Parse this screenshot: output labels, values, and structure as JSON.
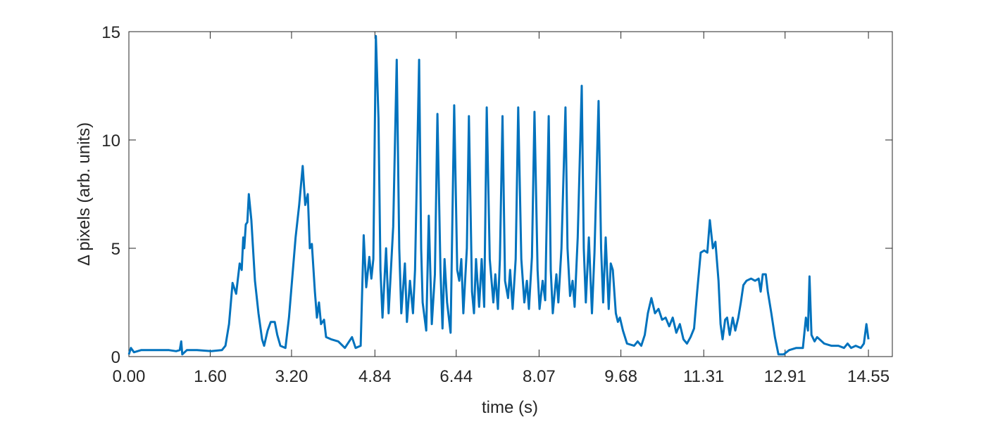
{
  "chart_data": {
    "type": "line",
    "xlabel": "time (s)",
    "ylabel": "Δ pixels (arb. units)",
    "color": "#0072BD",
    "xlim": [
      0,
      15.02
    ],
    "ylim": [
      0,
      15
    ],
    "xticks": [
      {
        "value": 0,
        "label": "0.00"
      },
      {
        "value": 1.6,
        "label": "1.60"
      },
      {
        "value": 3.2,
        "label": "3.20"
      },
      {
        "value": 4.84,
        "label": "4.84"
      },
      {
        "value": 6.44,
        "label": "6.44"
      },
      {
        "value": 8.07,
        "label": "8.07"
      },
      {
        "value": 9.68,
        "label": "9.68"
      },
      {
        "value": 11.31,
        "label": "11.31"
      },
      {
        "value": 12.91,
        "label": "12.91"
      },
      {
        "value": 14.55,
        "label": "14.55"
      }
    ],
    "yticks": [
      0,
      5,
      10,
      15
    ],
    "x": [
      0,
      0.04,
      0.1,
      0.24,
      0.51,
      0.79,
      0.93,
      1.0,
      1.03,
      1.05,
      1.14,
      1.34,
      1.62,
      1.83,
      1.9,
      1.97,
      2.04,
      2.11,
      2.18,
      2.22,
      2.25,
      2.27,
      2.3,
      2.33,
      2.36,
      2.41,
      2.48,
      2.55,
      2.62,
      2.66,
      2.73,
      2.79,
      2.87,
      2.92,
      2.98,
      3.08,
      3.15,
      3.28,
      3.35,
      3.42,
      3.47,
      3.52,
      3.56,
      3.6,
      3.66,
      3.7,
      3.74,
      3.78,
      3.84,
      3.88,
      3.98,
      4.12,
      4.25,
      4.39,
      4.46,
      4.56,
      4.62,
      4.67,
      4.73,
      4.77,
      4.81,
      4.86,
      4.91,
      4.95,
      4.99,
      5.06,
      5.11,
      5.2,
      5.27,
      5.32,
      5.36,
      5.43,
      5.47,
      5.53,
      5.59,
      5.63,
      5.71,
      5.75,
      5.78,
      5.85,
      5.9,
      5.96,
      6.02,
      6.07,
      6.13,
      6.17,
      6.21,
      6.26,
      6.33,
      6.4,
      6.46,
      6.5,
      6.54,
      6.58,
      6.65,
      6.69,
      6.75,
      6.79,
      6.83,
      6.89,
      6.94,
      6.99,
      7.04,
      7.1,
      7.17,
      7.21,
      7.26,
      7.3,
      7.35,
      7.4,
      7.46,
      7.5,
      7.55,
      7.61,
      7.66,
      7.72,
      7.78,
      7.83,
      7.87,
      7.93,
      7.98,
      8.04,
      8.08,
      8.14,
      8.19,
      8.26,
      8.3,
      8.34,
      8.41,
      8.45,
      8.51,
      8.59,
      8.63,
      8.68,
      8.73,
      8.77,
      8.83,
      8.91,
      8.95,
      8.99,
      9.05,
      9.11,
      9.16,
      9.24,
      9.29,
      9.33,
      9.38,
      9.44,
      9.48,
      9.52,
      9.58,
      9.62,
      9.66,
      9.72,
      9.8,
      9.94,
      10.01,
      10.08,
      10.15,
      10.21,
      10.28,
      10.35,
      10.42,
      10.49,
      10.56,
      10.63,
      10.7,
      10.77,
      10.84,
      10.91,
      10.98,
      11.05,
      11.12,
      11.18,
      11.25,
      11.32,
      11.38,
      11.43,
      11.49,
      11.54,
      11.6,
      11.64,
      11.68,
      11.73,
      11.77,
      11.82,
      11.88,
      11.93,
      11.99,
      12.04,
      12.09,
      12.15,
      12.24,
      12.32,
      12.39,
      12.43,
      12.47,
      12.53,
      12.57,
      12.64,
      12.71,
      12.78,
      12.88,
      12.99,
      13.13,
      13.26,
      13.32,
      13.36,
      13.39,
      13.43,
      13.49,
      13.54,
      13.68,
      13.82,
      13.96,
      14.07,
      14.14,
      14.21,
      14.3,
      14.4,
      14.46,
      14.51,
      14.55
    ],
    "values": [
      0.1,
      0.4,
      0.2,
      0.3,
      0.3,
      0.3,
      0.25,
      0.3,
      0.7,
      0.1,
      0.3,
      0.3,
      0.25,
      0.3,
      0.5,
      1.5,
      3.4,
      2.9,
      4.3,
      4.0,
      5.5,
      5.0,
      6.1,
      6.2,
      7.5,
      6.3,
      3.5,
      2.0,
      0.8,
      0.5,
      1.2,
      1.6,
      1.6,
      1.0,
      0.5,
      0.4,
      1.8,
      5.5,
      7.0,
      8.8,
      7.0,
      7.5,
      5.0,
      5.2,
      3.0,
      1.8,
      2.5,
      1.5,
      1.7,
      0.9,
      0.8,
      0.7,
      0.4,
      0.9,
      0.4,
      0.5,
      5.6,
      3.2,
      4.6,
      3.6,
      4.5,
      14.8,
      11.0,
      4.0,
      1.8,
      5.0,
      2.0,
      6.0,
      13.7,
      5.0,
      2.0,
      4.3,
      1.6,
      3.5,
      2.0,
      4.0,
      13.7,
      5.0,
      2.5,
      1.2,
      6.5,
      1.5,
      3.8,
      11.2,
      4.0,
      1.3,
      4.5,
      2.5,
      1.1,
      11.6,
      4.0,
      3.5,
      4.5,
      2.0,
      5.0,
      11.1,
      3.0,
      2.0,
      4.5,
      2.3,
      4.5,
      2.3,
      11.5,
      4.5,
      2.5,
      3.8,
      2.2,
      4.5,
      11.1,
      3.5,
      2.7,
      4.0,
      2.2,
      4.5,
      11.5,
      4.5,
      2.5,
      3.5,
      2.2,
      4.6,
      11.3,
      4.0,
      2.2,
      3.5,
      2.6,
      11.1,
      4.0,
      2.0,
      3.8,
      2.5,
      5.0,
      11.5,
      5.0,
      2.8,
      3.5,
      2.3,
      5.5,
      12.5,
      5.0,
      2.5,
      5.5,
      2.0,
      4.8,
      11.8,
      5.0,
      2.5,
      5.5,
      2.2,
      4.3,
      4.0,
      2.0,
      1.6,
      1.8,
      1.2,
      0.6,
      0.5,
      0.7,
      0.5,
      1.0,
      2.0,
      2.7,
      2.0,
      2.2,
      1.7,
      1.8,
      1.4,
      1.8,
      1.1,
      1.5,
      0.8,
      0.6,
      0.9,
      1.3,
      3.0,
      4.8,
      4.9,
      4.8,
      6.3,
      5.0,
      5.3,
      3.5,
      1.5,
      0.8,
      1.7,
      1.8,
      1.0,
      1.8,
      1.2,
      1.8,
      2.5,
      3.3,
      3.5,
      3.6,
      3.5,
      3.6,
      3.0,
      3.8,
      3.8,
      3.0,
      2.0,
      0.9,
      0.1,
      0.1,
      0.3,
      0.4,
      0.4,
      1.8,
      1.2,
      3.7,
      1.0,
      0.7,
      0.9,
      0.6,
      0.5,
      0.5,
      0.4,
      0.6,
      0.4,
      0.5,
      0.4,
      0.6,
      1.5,
      0.8
    ]
  }
}
